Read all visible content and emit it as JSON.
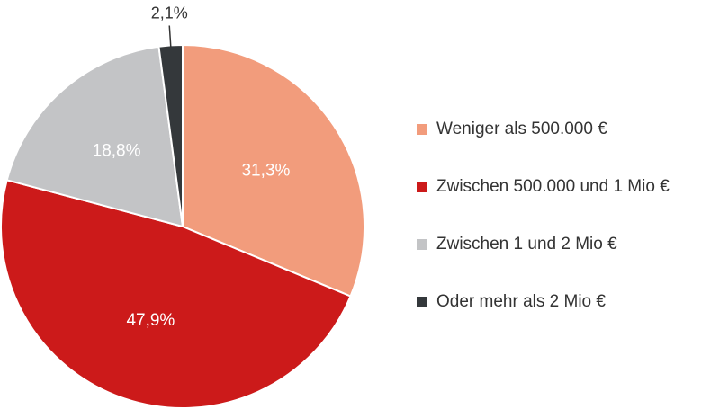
{
  "chart_data": {
    "type": "pie",
    "start_angle_deg": 0,
    "direction": "clockwise",
    "slices": [
      {
        "label": "Weniger als 500.000 €",
        "value": 31.3,
        "display": "31,3%",
        "color": "#f29c7c",
        "label_placement": "inside"
      },
      {
        "label": "Zwischen 500.000 und 1 Mio €",
        "value": 47.9,
        "display": "47,9%",
        "color": "#cc1a1a",
        "label_placement": "inside"
      },
      {
        "label": "Zwischen 1 und 2 Mio €",
        "value": 18.8,
        "display": "18,8%",
        "color": "#c3c4c6",
        "label_placement": "inside"
      },
      {
        "label": "Oder mehr als 2 Mio €",
        "value": 2.1,
        "display": "2,1%",
        "color": "#34383b",
        "label_placement": "outside"
      }
    ],
    "legend_position": "right",
    "title": ""
  }
}
